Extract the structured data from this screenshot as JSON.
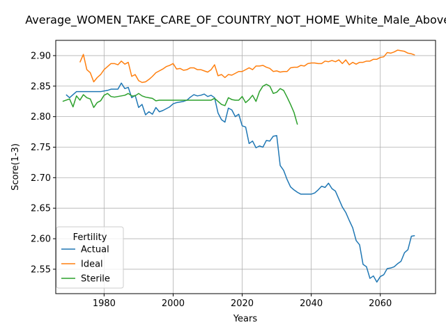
{
  "chart_data": {
    "type": "line",
    "title": "Average_WOMEN_TAKE_CARE_OF_COUNTRY_NOT_HOME_White_Male_Above_Avg",
    "xlabel": "Years",
    "ylabel": "Score(1-3)",
    "xlim": [
      1966,
      2076
    ],
    "ylim": [
      2.51,
      2.925
    ],
    "xticks": [
      1980,
      2000,
      2020,
      2040,
      2060
    ],
    "yticks": [
      2.55,
      2.6,
      2.65,
      2.7,
      2.75,
      2.8,
      2.85,
      2.9
    ],
    "grid": true,
    "legend": {
      "title": "Fertility",
      "placement": "bottom-left"
    },
    "series": [
      {
        "name": "Actual",
        "color": "#1f77b4",
        "points": [
          [
            1969,
            2.836
          ],
          [
            1970,
            2.831
          ],
          [
            1971,
            2.836
          ],
          [
            1972,
            2.841
          ],
          [
            1973,
            2.841
          ],
          [
            1974,
            2.841
          ],
          [
            1975,
            2.841
          ],
          [
            1976,
            2.841
          ],
          [
            1977,
            2.841
          ],
          [
            1978,
            2.841
          ],
          [
            1979,
            2.841
          ],
          [
            1980,
            2.842
          ],
          [
            1981,
            2.843
          ],
          [
            1982,
            2.845
          ],
          [
            1983,
            2.845
          ],
          [
            1984,
            2.845
          ],
          [
            1985,
            2.855
          ],
          [
            1986,
            2.846
          ],
          [
            1987,
            2.848
          ],
          [
            1988,
            2.831
          ],
          [
            1989,
            2.835
          ],
          [
            1990,
            2.815
          ],
          [
            1991,
            2.82
          ],
          [
            1992,
            2.803
          ],
          [
            1993,
            2.808
          ],
          [
            1994,
            2.804
          ],
          [
            1995,
            2.815
          ],
          [
            1996,
            2.808
          ],
          [
            1997,
            2.81
          ],
          [
            1998,
            2.813
          ],
          [
            1999,
            2.816
          ],
          [
            2000,
            2.821
          ],
          [
            2001,
            2.823
          ],
          [
            2002,
            2.824
          ],
          [
            2003,
            2.825
          ],
          [
            2004,
            2.827
          ],
          [
            2005,
            2.832
          ],
          [
            2006,
            2.836
          ],
          [
            2007,
            2.834
          ],
          [
            2008,
            2.835
          ],
          [
            2009,
            2.837
          ],
          [
            2010,
            2.833
          ],
          [
            2011,
            2.835
          ],
          [
            2012,
            2.831
          ],
          [
            2013,
            2.806
          ],
          [
            2014,
            2.795
          ],
          [
            2015,
            2.791
          ],
          [
            2016,
            2.814
          ],
          [
            2017,
            2.811
          ],
          [
            2018,
            2.8
          ],
          [
            2019,
            2.804
          ],
          [
            2020,
            2.785
          ],
          [
            2021,
            2.783
          ],
          [
            2022,
            2.756
          ],
          [
            2023,
            2.76
          ],
          [
            2024,
            2.749
          ],
          [
            2025,
            2.752
          ],
          [
            2026,
            2.75
          ],
          [
            2027,
            2.761
          ],
          [
            2028,
            2.76
          ],
          [
            2029,
            2.768
          ],
          [
            2030,
            2.769
          ],
          [
            2031,
            2.72
          ],
          [
            2032,
            2.712
          ],
          [
            2033,
            2.697
          ],
          [
            2034,
            2.685
          ],
          [
            2035,
            2.68
          ],
          [
            2036,
            2.676
          ],
          [
            2037,
            2.673
          ],
          [
            2038,
            2.673
          ],
          [
            2039,
            2.673
          ],
          [
            2040,
            2.673
          ],
          [
            2041,
            2.675
          ],
          [
            2042,
            2.68
          ],
          [
            2043,
            2.686
          ],
          [
            2044,
            2.684
          ],
          [
            2045,
            2.691
          ],
          [
            2046,
            2.682
          ],
          [
            2047,
            2.678
          ],
          [
            2048,
            2.665
          ],
          [
            2049,
            2.652
          ],
          [
            2050,
            2.643
          ],
          [
            2051,
            2.63
          ],
          [
            2052,
            2.618
          ],
          [
            2053,
            2.597
          ],
          [
            2054,
            2.59
          ],
          [
            2055,
            2.558
          ],
          [
            2056,
            2.554
          ],
          [
            2057,
            2.535
          ],
          [
            2058,
            2.539
          ],
          [
            2059,
            2.529
          ],
          [
            2060,
            2.538
          ],
          [
            2061,
            2.541
          ],
          [
            2062,
            2.551
          ],
          [
            2063,
            2.552
          ],
          [
            2064,
            2.554
          ],
          [
            2065,
            2.559
          ],
          [
            2066,
            2.563
          ],
          [
            2067,
            2.577
          ],
          [
            2068,
            2.582
          ],
          [
            2069,
            2.604
          ],
          [
            2070,
            2.605
          ]
        ]
      },
      {
        "name": "Ideal",
        "color": "#ff7f0e",
        "points": [
          [
            1973,
            2.889
          ],
          [
            1974,
            2.902
          ],
          [
            1975,
            2.877
          ],
          [
            1976,
            2.872
          ],
          [
            1977,
            2.857
          ],
          [
            1978,
            2.864
          ],
          [
            1979,
            2.869
          ],
          [
            1980,
            2.877
          ],
          [
            1981,
            2.882
          ],
          [
            1982,
            2.887
          ],
          [
            1983,
            2.887
          ],
          [
            1984,
            2.885
          ],
          [
            1985,
            2.891
          ],
          [
            1986,
            2.886
          ],
          [
            1987,
            2.889
          ],
          [
            1988,
            2.866
          ],
          [
            1989,
            2.869
          ],
          [
            1990,
            2.859
          ],
          [
            1991,
            2.856
          ],
          [
            1992,
            2.857
          ],
          [
            1993,
            2.861
          ],
          [
            1994,
            2.866
          ],
          [
            1995,
            2.872
          ],
          [
            1996,
            2.875
          ],
          [
            1997,
            2.878
          ],
          [
            1998,
            2.882
          ],
          [
            1999,
            2.884
          ],
          [
            2000,
            2.887
          ],
          [
            2001,
            2.878
          ],
          [
            2002,
            2.879
          ],
          [
            2003,
            2.876
          ],
          [
            2004,
            2.877
          ],
          [
            2005,
            2.88
          ],
          [
            2006,
            2.88
          ],
          [
            2007,
            2.877
          ],
          [
            2008,
            2.877
          ],
          [
            2009,
            2.875
          ],
          [
            2010,
            2.873
          ],
          [
            2011,
            2.877
          ],
          [
            2012,
            2.885
          ],
          [
            2013,
            2.867
          ],
          [
            2014,
            2.869
          ],
          [
            2015,
            2.864
          ],
          [
            2016,
            2.869
          ],
          [
            2017,
            2.868
          ],
          [
            2018,
            2.871
          ],
          [
            2019,
            2.874
          ],
          [
            2020,
            2.874
          ],
          [
            2021,
            2.877
          ],
          [
            2022,
            2.88
          ],
          [
            2023,
            2.877
          ],
          [
            2024,
            2.883
          ],
          [
            2025,
            2.883
          ],
          [
            2026,
            2.884
          ],
          [
            2027,
            2.881
          ],
          [
            2028,
            2.879
          ],
          [
            2029,
            2.874
          ],
          [
            2030,
            2.875
          ],
          [
            2031,
            2.873
          ],
          [
            2032,
            2.874
          ],
          [
            2033,
            2.874
          ],
          [
            2034,
            2.88
          ],
          [
            2035,
            2.881
          ],
          [
            2036,
            2.881
          ],
          [
            2037,
            2.884
          ],
          [
            2038,
            2.883
          ],
          [
            2039,
            2.887
          ],
          [
            2040,
            2.888
          ],
          [
            2041,
            2.888
          ],
          [
            2042,
            2.887
          ],
          [
            2043,
            2.887
          ],
          [
            2044,
            2.891
          ],
          [
            2045,
            2.89
          ],
          [
            2046,
            2.892
          ],
          [
            2047,
            2.89
          ],
          [
            2048,
            2.893
          ],
          [
            2049,
            2.887
          ],
          [
            2050,
            2.893
          ],
          [
            2051,
            2.885
          ],
          [
            2052,
            2.889
          ],
          [
            2053,
            2.886
          ],
          [
            2054,
            2.889
          ],
          [
            2055,
            2.889
          ],
          [
            2056,
            2.891
          ],
          [
            2057,
            2.891
          ],
          [
            2058,
            2.894
          ],
          [
            2059,
            2.894
          ],
          [
            2060,
            2.897
          ],
          [
            2061,
            2.898
          ],
          [
            2062,
            2.905
          ],
          [
            2063,
            2.904
          ],
          [
            2064,
            2.906
          ],
          [
            2065,
            2.909
          ],
          [
            2066,
            2.908
          ],
          [
            2067,
            2.907
          ],
          [
            2068,
            2.904
          ],
          [
            2069,
            2.903
          ],
          [
            2070,
            2.901
          ]
        ]
      },
      {
        "name": "Sterile",
        "color": "#2ca02c",
        "points": [
          [
            1968,
            2.825
          ],
          [
            1969,
            2.827
          ],
          [
            1970,
            2.829
          ],
          [
            1971,
            2.816
          ],
          [
            1972,
            2.834
          ],
          [
            1973,
            2.827
          ],
          [
            1974,
            2.836
          ],
          [
            1975,
            2.831
          ],
          [
            1976,
            2.829
          ],
          [
            1977,
            2.815
          ],
          [
            1978,
            2.823
          ],
          [
            1979,
            2.826
          ],
          [
            1980,
            2.835
          ],
          [
            1981,
            2.838
          ],
          [
            1982,
            2.833
          ],
          [
            1983,
            2.832
          ],
          [
            1984,
            2.833
          ],
          [
            1985,
            2.834
          ],
          [
            1986,
            2.835
          ],
          [
            1987,
            2.838
          ],
          [
            1988,
            2.834
          ],
          [
            1989,
            2.834
          ],
          [
            1990,
            2.838
          ],
          [
            1991,
            2.834
          ],
          [
            1992,
            2.832
          ],
          [
            1993,
            2.831
          ],
          [
            1994,
            2.83
          ],
          [
            1995,
            2.826
          ],
          [
            1996,
            2.827
          ],
          [
            1997,
            2.827
          ],
          [
            1998,
            2.827
          ],
          [
            1999,
            2.827
          ],
          [
            2000,
            2.827
          ],
          [
            2001,
            2.827
          ],
          [
            2002,
            2.827
          ],
          [
            2003,
            2.827
          ],
          [
            2004,
            2.827
          ],
          [
            2005,
            2.827
          ],
          [
            2006,
            2.827
          ],
          [
            2007,
            2.827
          ],
          [
            2008,
            2.827
          ],
          [
            2009,
            2.827
          ],
          [
            2010,
            2.827
          ],
          [
            2011,
            2.827
          ],
          [
            2012,
            2.83
          ],
          [
            2013,
            2.825
          ],
          [
            2014,
            2.82
          ],
          [
            2015,
            2.818
          ],
          [
            2016,
            2.831
          ],
          [
            2017,
            2.828
          ],
          [
            2018,
            2.827
          ],
          [
            2019,
            2.827
          ],
          [
            2020,
            2.833
          ],
          [
            2021,
            2.823
          ],
          [
            2022,
            2.828
          ],
          [
            2023,
            2.835
          ],
          [
            2024,
            2.825
          ],
          [
            2025,
            2.841
          ],
          [
            2026,
            2.85
          ],
          [
            2027,
            2.853
          ],
          [
            2028,
            2.85
          ],
          [
            2029,
            2.838
          ],
          [
            2030,
            2.84
          ],
          [
            2031,
            2.846
          ],
          [
            2032,
            2.843
          ],
          [
            2033,
            2.832
          ],
          [
            2034,
            2.82
          ],
          [
            2035,
            2.807
          ],
          [
            2036,
            2.787
          ]
        ]
      }
    ]
  }
}
